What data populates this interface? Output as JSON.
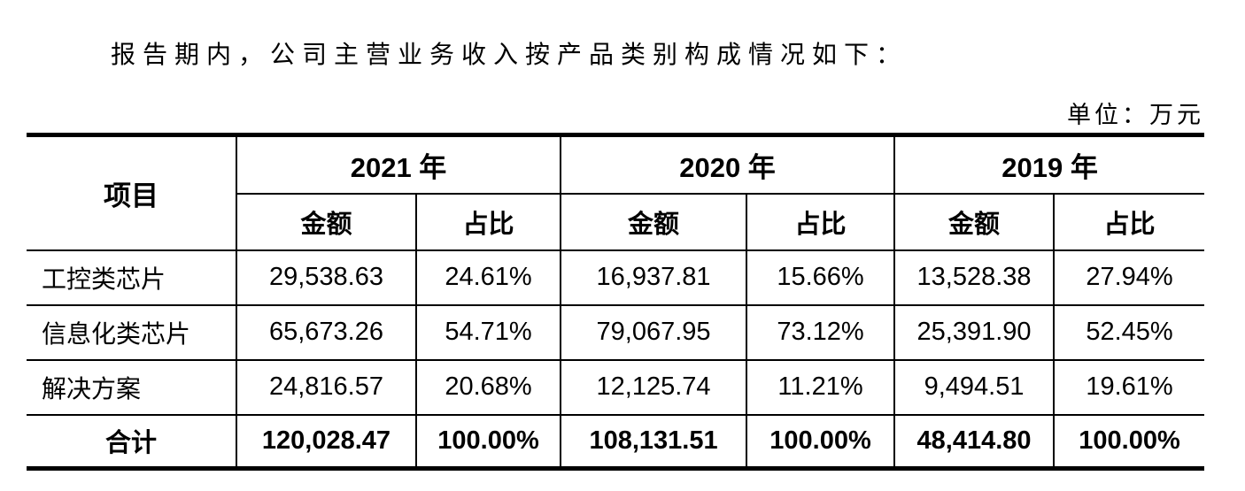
{
  "intro": "报告期内，公司主营业务收入按产品类别构成情况如下：",
  "unit_label": "单位：万元",
  "table": {
    "item_header": "项目",
    "year_groups": [
      {
        "year": "2021 年",
        "amount_label": "金额",
        "ratio_label": "占比"
      },
      {
        "year": "2020 年",
        "amount_label": "金额",
        "ratio_label": "占比"
      },
      {
        "year": "2019 年",
        "amount_label": "金额",
        "ratio_label": "占比"
      }
    ],
    "rows": [
      {
        "label": "工控类芯片",
        "values": [
          "29,538.63",
          "24.61%",
          "16,937.81",
          "15.66%",
          "13,528.38",
          "27.94%"
        ]
      },
      {
        "label": "信息化类芯片",
        "values": [
          "65,673.26",
          "54.71%",
          "79,067.95",
          "73.12%",
          "25,391.90",
          "52.45%"
        ]
      },
      {
        "label": "解决方案",
        "values": [
          "24,816.57",
          "20.68%",
          "12,125.74",
          "11.21%",
          "9,494.51",
          "19.61%"
        ]
      }
    ],
    "total_row": {
      "label": "合计",
      "values": [
        "120,028.47",
        "100.00%",
        "108,131.51",
        "100.00%",
        "48,414.80",
        "100.00%"
      ]
    }
  }
}
